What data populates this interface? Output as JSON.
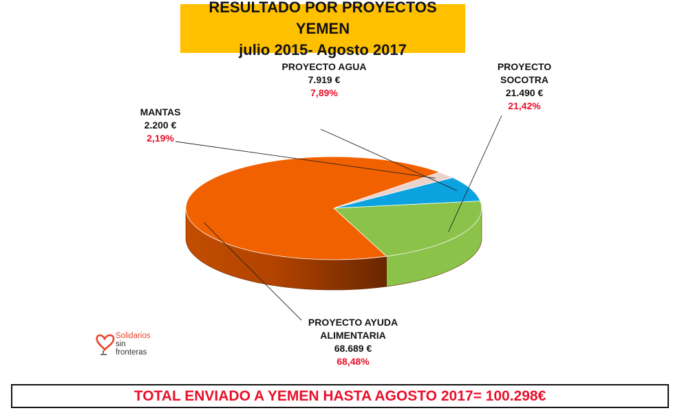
{
  "title": {
    "line1": "RESULTADO POR PROYECTOS YEMEN",
    "line2": "julio 2015- Agosto 2017"
  },
  "chart_data": {
    "type": "pie",
    "is_3d": true,
    "slices": [
      {
        "key": "alimentaria",
        "label": [
          "PROYECTO AYUDA",
          "ALIMENTARIA"
        ],
        "amount": "68.689 €",
        "percent": "68,48%",
        "value": 68.48,
        "color": "#f26100"
      },
      {
        "key": "socotra",
        "label": [
          "PROYECTO",
          "SOCOTRA"
        ],
        "amount": "21.490 €",
        "percent": "21,42%",
        "value": 21.42,
        "color": "#8bc34a"
      },
      {
        "key": "agua",
        "label": [
          "PROYECTO AGUA"
        ],
        "amount": "7.919 €",
        "percent": "7,89%",
        "value": 7.89,
        "color": "#0ba3df"
      },
      {
        "key": "mantas",
        "label": [
          "MANTAS"
        ],
        "amount": "2.200 €",
        "percent": "2,19%",
        "value": 2.19,
        "color": "#ecd2cc"
      }
    ],
    "total": "TOTAL ENVIADO A YEMEN HASTA AGOSTO 2017= 100.298€"
  },
  "logo": {
    "line1": "Solidarios",
    "line2": "sin",
    "line3": "fronteras"
  }
}
